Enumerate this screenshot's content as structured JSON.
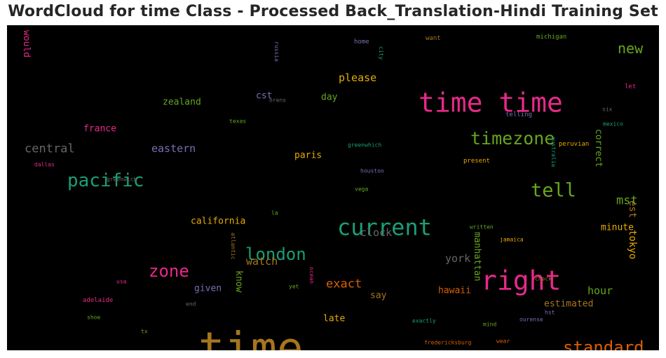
{
  "chart_data": {
    "type": "wordcloud",
    "title": "WordCloud for time Class - Processed Back_Translation-Hindi Training Set",
    "background": "#000000",
    "palette": "Dark2",
    "words": [
      {
        "text": "time",
        "color": "#a6761d"
      },
      {
        "text": "time time",
        "color": "#e7298a"
      },
      {
        "text": "right",
        "color": "#e7298a"
      },
      {
        "text": "current",
        "color": "#1b9e77"
      },
      {
        "text": "timezone",
        "color": "#66a61e"
      },
      {
        "text": "pacific",
        "color": "#1b9e77"
      },
      {
        "text": "tell",
        "color": "#66a61e"
      },
      {
        "text": "standard",
        "color": "#d95f02"
      },
      {
        "text": "london",
        "color": "#1b9e77"
      },
      {
        "text": "zone",
        "color": "#e7298a"
      },
      {
        "text": "new",
        "color": "#66a61e"
      },
      {
        "text": "central",
        "color": "#666666"
      },
      {
        "text": "eastern",
        "color": "#7570b3"
      },
      {
        "text": "exact",
        "color": "#d95f02"
      },
      {
        "text": "mst",
        "color": "#66a61e"
      },
      {
        "text": "please",
        "color": "#e6ab02"
      },
      {
        "text": "clock",
        "color": "#666666"
      },
      {
        "text": "york",
        "color": "#666666"
      },
      {
        "text": "watch",
        "color": "#a6761d"
      },
      {
        "text": "hour",
        "color": "#66a61e"
      },
      {
        "text": "hawaii",
        "color": "#d95f02"
      },
      {
        "text": "zealand",
        "color": "#66a61e"
      },
      {
        "text": "france",
        "color": "#e7298a"
      },
      {
        "text": "cst",
        "color": "#7570b3"
      },
      {
        "text": "day",
        "color": "#66a61e"
      },
      {
        "text": "paris",
        "color": "#e6ab02"
      },
      {
        "text": "california",
        "color": "#e6ab02"
      },
      {
        "text": "minute",
        "color": "#e6ab02"
      },
      {
        "text": "est",
        "color": "#a6761d"
      },
      {
        "text": "tokyo",
        "color": "#e6ab02"
      },
      {
        "text": "correct",
        "color": "#66a61e"
      },
      {
        "text": "manhattan",
        "color": "#66a61e"
      },
      {
        "text": "know",
        "color": "#66a61e"
      },
      {
        "text": "given",
        "color": "#7570b3"
      },
      {
        "text": "say",
        "color": "#a6761d"
      },
      {
        "text": "estimated",
        "color": "#a6761d"
      },
      {
        "text": "late",
        "color": "#e6ab02"
      },
      {
        "text": "would",
        "color": "#e7298a"
      },
      {
        "text": "home",
        "color": "#7570b3"
      },
      {
        "text": "want",
        "color": "#a6761d"
      },
      {
        "text": "michigan",
        "color": "#66a61e"
      },
      {
        "text": "russia",
        "color": "#7570b3"
      },
      {
        "text": "city",
        "color": "#1b9e77"
      },
      {
        "text": "let",
        "color": "#e7298a"
      },
      {
        "text": "orens",
        "color": "#666666"
      },
      {
        "text": "telling",
        "color": "#7570b3"
      },
      {
        "text": "six",
        "color": "#666666"
      },
      {
        "text": "texas",
        "color": "#66a61e"
      },
      {
        "text": "mexico",
        "color": "#1b9e77"
      },
      {
        "text": "peruvian",
        "color": "#e6ab02"
      },
      {
        "text": "greenwhich",
        "color": "#1b9e77"
      },
      {
        "text": "australia",
        "color": "#1b9e77"
      },
      {
        "text": "present",
        "color": "#e6ab02"
      },
      {
        "text": "dallas",
        "color": "#e7298a"
      },
      {
        "text": "greenwich",
        "color": "#666666"
      },
      {
        "text": "houston",
        "color": "#7570b3"
      },
      {
        "text": "vega",
        "color": "#66a61e"
      },
      {
        "text": "la",
        "color": "#66a61e"
      },
      {
        "text": "written",
        "color": "#66a61e"
      },
      {
        "text": "jamaica",
        "color": "#e6ab02"
      },
      {
        "text": "atlantic",
        "color": "#a6761d"
      },
      {
        "text": "check",
        "color": "#a6761d"
      },
      {
        "text": "usa",
        "color": "#e7298a"
      },
      {
        "text": "ocean",
        "color": "#e7298a"
      },
      {
        "text": "yet",
        "color": "#66a61e"
      },
      {
        "text": "adelaide",
        "color": "#e7298a"
      },
      {
        "text": "end",
        "color": "#666666"
      },
      {
        "text": "shoe",
        "color": "#66a61e"
      },
      {
        "text": "exactly",
        "color": "#1b9e77"
      },
      {
        "text": "mind",
        "color": "#66a61e"
      },
      {
        "text": "ourense",
        "color": "#7570b3"
      },
      {
        "text": "hst",
        "color": "#7570b3"
      },
      {
        "text": "tx",
        "color": "#66a61e"
      },
      {
        "text": "fredericksburg",
        "color": "#d95f02"
      },
      {
        "text": "wear",
        "color": "#d95f02"
      }
    ]
  }
}
